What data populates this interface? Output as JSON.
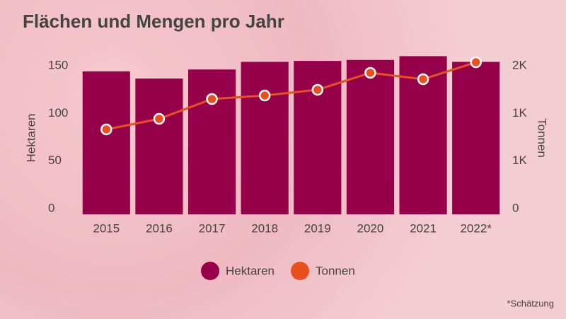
{
  "chart_data": {
    "type": "bar-line",
    "title": "Flächen und Mengen pro Jahr",
    "categories": [
      "2015",
      "2016",
      "2017",
      "2018",
      "2019",
      "2020",
      "2021",
      "2022*"
    ],
    "series": [
      {
        "name": "Hektaren",
        "color": "#96004b",
        "type": "bar",
        "values": [
          150,
          142.5,
          152,
          160,
          161,
          162,
          166,
          160
        ]
      },
      {
        "name": "Tonnen",
        "color": "#e8501e",
        "type": "line",
        "axis": "y2",
        "values": [
          891,
          1002,
          1210,
          1247,
          1307,
          1485,
          1418,
          1596
        ]
      }
    ],
    "y_label": "Hektaren",
    "y2_label": "Tonnen",
    "ylim": [
      0,
      170
    ],
    "yticks": [
      0,
      50,
      100,
      150
    ],
    "y2lim": [
      0,
      1700
    ],
    "y2ticks": [
      0,
      {
        "value": 500,
        "label": "1K"
      },
      {
        "value": 1000,
        "label": "1K"
      },
      {
        "value": 1500,
        "label": "2K"
      }
    ],
    "footnote": "*Schätzung"
  }
}
